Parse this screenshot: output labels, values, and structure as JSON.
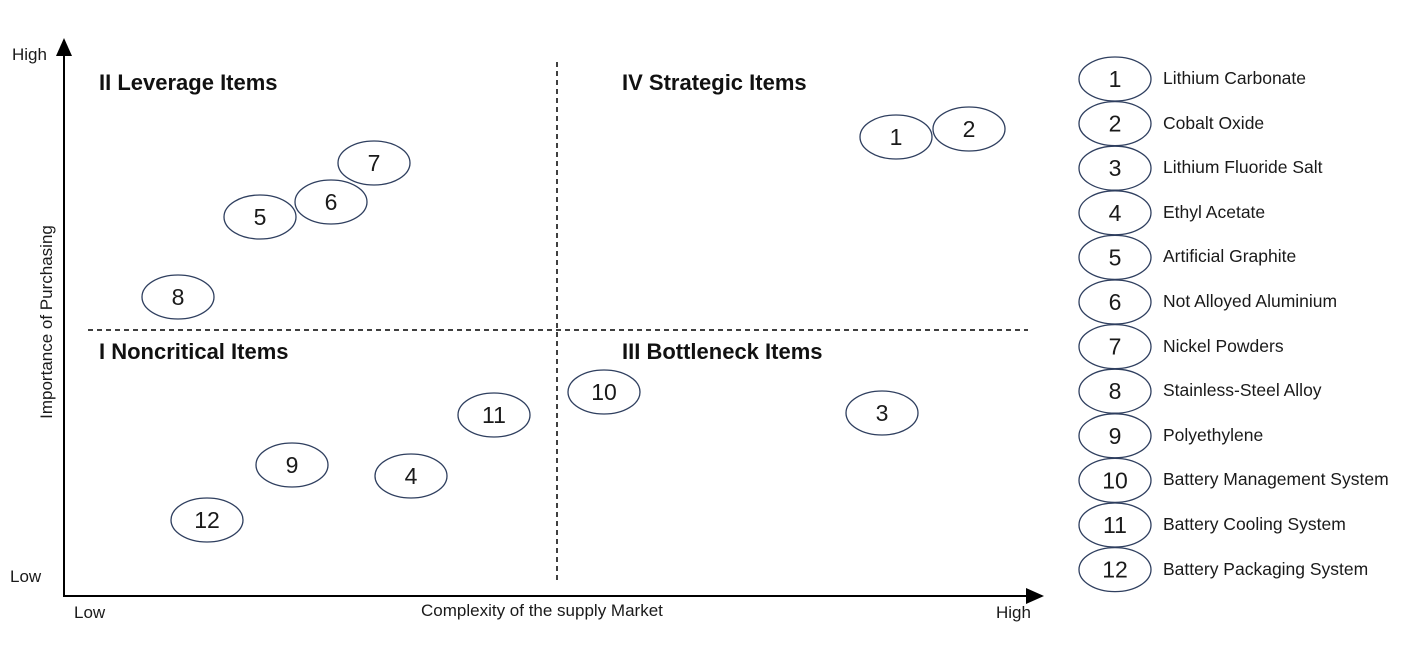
{
  "axes": {
    "y_high": "High",
    "y_low": "Low",
    "y_title": "Importance of Purchasing",
    "x_low": "Low",
    "x_high": "High",
    "x_title": "Complexity of the supply Market"
  },
  "quadrants": {
    "top_left": "II Leverage Items",
    "top_right": "IV Strategic Items",
    "bottom_left": "I Noncritical Items",
    "bottom_right": "III Bottleneck Items"
  },
  "items": [
    {
      "num": "1",
      "label": "Lithium Carbonate"
    },
    {
      "num": "2",
      "label": "Cobalt Oxide"
    },
    {
      "num": "3",
      "label": "Lithium Fluoride Salt"
    },
    {
      "num": "4",
      "label": "Ethyl Acetate"
    },
    {
      "num": "5",
      "label": "Artificial Graphite"
    },
    {
      "num": "6",
      "label": "Not Alloyed Aluminium"
    },
    {
      "num": "7",
      "label": "Nickel Powders"
    },
    {
      "num": "8",
      "label": "Stainless-Steel Alloy"
    },
    {
      "num": "9",
      "label": "Polyethylene"
    },
    {
      "num": "10",
      "label": "Battery Management System"
    },
    {
      "num": "11",
      "label": "Battery Cooling System"
    },
    {
      "num": "12",
      "label": "Battery Packaging System"
    }
  ],
  "colors": {
    "bubble_stroke": "#2f3f5f",
    "axis": "#000000"
  }
}
